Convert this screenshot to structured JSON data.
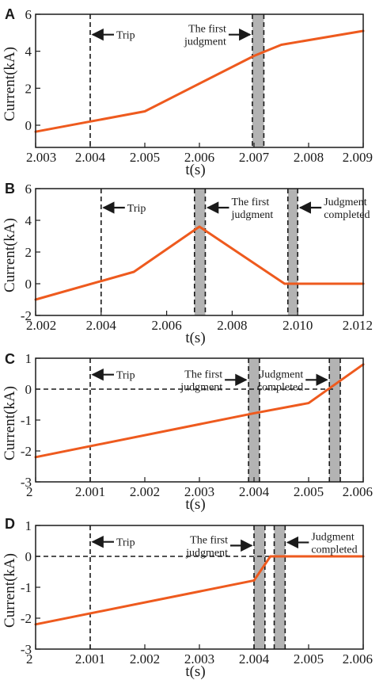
{
  "colors": {
    "series": "#ee5a1e",
    "shade": "#b3b3b3",
    "ink": "#1a1a1a"
  },
  "chart_data": [
    {
      "type": "line",
      "panel": "A",
      "xlabel": "t(s)",
      "ylabel": "Current(kA)",
      "xlim": [
        2.003,
        2.009
      ],
      "ylim": [
        -1.2,
        6
      ],
      "xticks": [
        "2.003",
        "2.004",
        "2.005",
        "2.006",
        "2.007",
        "2.008",
        "2.009"
      ],
      "yticks": [
        "0",
        "2",
        "4",
        "6"
      ],
      "series": [
        {
          "x": [
            2.003,
            2.004,
            2.005,
            2.007,
            2.0075,
            2.009
          ],
          "y": [
            -0.35,
            0.2,
            0.75,
            3.75,
            4.35,
            5.1
          ]
        }
      ],
      "vlines": [
        2.004,
        2.00697,
        2.00718
      ],
      "bands": [
        [
          2.00697,
          2.00718
        ]
      ],
      "hlines": [],
      "annotations": [
        {
          "text": [
            "Trip"
          ],
          "x": 2.004,
          "y": 4.9,
          "dir": "right"
        },
        {
          "text": [
            "The first",
            "judgment"
          ],
          "x": 2.00697,
          "y": 4.9,
          "dir": "left"
        }
      ]
    },
    {
      "type": "line",
      "panel": "B",
      "xlabel": "t(s)",
      "ylabel": "Current(kA)",
      "xlim": [
        2.002,
        2.012
      ],
      "ylim": [
        -2,
        6
      ],
      "xticks": [
        "2.002",
        "2.004",
        "2.006",
        "2.008",
        "2.010",
        "2.012"
      ],
      "yticks": [
        "-2",
        "0",
        "2",
        "4",
        "6"
      ],
      "series": [
        {
          "x": [
            2.002,
            2.005,
            2.007,
            2.0096,
            2.012
          ],
          "y": [
            -1.0,
            0.75,
            3.6,
            0.0,
            0.0
          ]
        }
      ],
      "vlines": [
        2.004,
        2.00685,
        2.00718,
        2.0097,
        2.01
      ],
      "bands": [
        [
          2.00685,
          2.00718
        ],
        [
          2.0097,
          2.01
        ]
      ],
      "hlines": [],
      "annotations": [
        {
          "text": [
            "Trip"
          ],
          "x": 2.004,
          "y": 4.8,
          "dir": "right"
        },
        {
          "text": [
            "The first",
            "judgment"
          ],
          "x": 2.00718,
          "y": 4.8,
          "dir": "right"
        },
        {
          "text": [
            "Judgment",
            "completed"
          ],
          "x": 2.01,
          "y": 4.8,
          "dir": "right"
        }
      ]
    },
    {
      "type": "line",
      "panel": "C",
      "xlabel": "t(s)",
      "ylabel": "Current(kA)",
      "xlim": [
        2.0,
        2.006
      ],
      "ylim": [
        -3,
        1
      ],
      "xticks": [
        "2",
        "2.001",
        "2.002",
        "2.003",
        "2.004",
        "2.005",
        "2.006"
      ],
      "yticks": [
        "-3",
        "-2",
        "-1",
        "0",
        "1"
      ],
      "series": [
        {
          "x": [
            2.0,
            2.004,
            2.005,
            2.006
          ],
          "y": [
            -2.2,
            -0.78,
            -0.45,
            0.8
          ]
        }
      ],
      "vlines": [
        2.001,
        2.0039,
        2.0041,
        2.00538,
        2.00558
      ],
      "bands": [
        [
          2.0039,
          2.0041
        ],
        [
          2.00538,
          2.00558
        ]
      ],
      "hlines": [
        {
          "y": 0,
          "x": [
            2.0,
            2.0055
          ]
        }
      ],
      "annotations": [
        {
          "text": [
            "Trip"
          ],
          "x": 2.001,
          "y": 0.47,
          "dir": "right"
        },
        {
          "text": [
            "The first",
            "judgment"
          ],
          "x": 2.0039,
          "y": 0.3,
          "dir": "left"
        },
        {
          "text": [
            "Judgment",
            "completed"
          ],
          "x": 2.00538,
          "y": 0.3,
          "dir": "left"
        }
      ]
    },
    {
      "type": "line",
      "panel": "D",
      "xlabel": "t(s)",
      "ylabel": "Current(kA)",
      "xlim": [
        2.0,
        2.006
      ],
      "ylim": [
        -3,
        1
      ],
      "xticks": [
        "2",
        "2.001",
        "2.002",
        "2.003",
        "2.004",
        "2.005",
        "2.006"
      ],
      "yticks": [
        "-3",
        "-2",
        "-1",
        "0",
        "1"
      ],
      "series": [
        {
          "x": [
            2.0,
            2.004,
            2.0043,
            2.006
          ],
          "y": [
            -2.2,
            -0.78,
            0.0,
            0.0
          ]
        }
      ],
      "vlines": [
        2.001,
        2.004,
        2.0042,
        2.00437,
        2.00457
      ],
      "bands": [
        [
          2.004,
          2.0042
        ],
        [
          2.00437,
          2.00457
        ]
      ],
      "hlines": [
        {
          "y": 0,
          "x": [
            2.0,
            2.0043
          ]
        }
      ],
      "annotations": [
        {
          "text": [
            "Trip"
          ],
          "x": 2.001,
          "y": 0.47,
          "dir": "right"
        },
        {
          "text": [
            "The first",
            "judgment"
          ],
          "x": 2.004,
          "y": 0.35,
          "dir": "left"
        },
        {
          "text": [
            "Judgment",
            "completed"
          ],
          "x": 2.00457,
          "y": 0.45,
          "dir": "right"
        }
      ]
    }
  ]
}
